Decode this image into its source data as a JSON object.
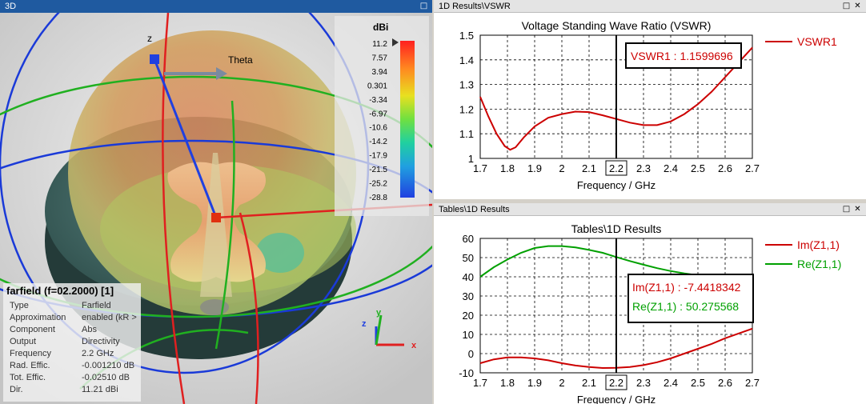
{
  "panel3d": {
    "title": "3D",
    "unit": "dBi",
    "scale_ticks": [
      "11.2",
      "7.57",
      "3.94",
      "0.301",
      "-3.34",
      "-6.97",
      "-10.6",
      "-14.2",
      "-17.9",
      "-21.5",
      "-25.2",
      "-28.8"
    ],
    "axis_labels": {
      "z_top": "z",
      "theta": "Theta",
      "x": "x",
      "y": "y",
      "z": "z"
    },
    "info": {
      "header": "farfield (f=02.2000) [1]",
      "rows": [
        {
          "label": "Type",
          "value": "Farfield"
        },
        {
          "label": "Approximation",
          "value": "enabled (kR >"
        },
        {
          "label": "Component",
          "value": "Abs"
        },
        {
          "label": "Output",
          "value": "Directivity"
        },
        {
          "label": "Frequency",
          "value": "2.2 GHz"
        },
        {
          "label": "Rad. Effic.",
          "value": "-0.001210 dB"
        },
        {
          "label": "Tot. Effic.",
          "value": "-0.02510 dB"
        },
        {
          "label": "Dir.",
          "value": "11.21 dBi"
        }
      ]
    }
  },
  "vswr_panel": {
    "title": "1D Results\\VSWR",
    "marker_label": "VSWR1 : 1.1599696"
  },
  "tables_panel": {
    "title": "Tables\\1D Results",
    "marker_im": "Im(Z1,1) : -7.4418342",
    "marker_re": "Re(Z1,1) : 50.275568"
  },
  "chart_data": [
    {
      "type": "line",
      "title": "Voltage Standing Wave Ratio (VSWR)",
      "xlabel": "Frequency / GHz",
      "ylabel": "",
      "xlim": [
        1.7,
        2.7
      ],
      "ylim": [
        1.0,
        1.5
      ],
      "xticks": [
        "1.7",
        "1.8",
        "1.9",
        "2",
        "2.1",
        "2.2",
        "2.3",
        "2.4",
        "2.5",
        "2.6",
        "2.7"
      ],
      "yticks": [
        "1",
        "1.1",
        "1.2",
        "1.3",
        "1.4",
        "1.5"
      ],
      "marker_x": 2.2,
      "legend_position": "right",
      "series": [
        {
          "name": "VSWR1",
          "color": "#cc0000",
          "x": [
            1.7,
            1.73,
            1.76,
            1.79,
            1.81,
            1.83,
            1.86,
            1.9,
            1.95,
            2.0,
            2.05,
            2.1,
            2.15,
            2.2,
            2.25,
            2.3,
            2.35,
            2.4,
            2.45,
            2.5,
            2.55,
            2.6,
            2.65,
            2.7
          ],
          "y": [
            1.25,
            1.17,
            1.1,
            1.05,
            1.035,
            1.045,
            1.085,
            1.13,
            1.165,
            1.18,
            1.19,
            1.188,
            1.175,
            1.16,
            1.145,
            1.135,
            1.135,
            1.15,
            1.18,
            1.22,
            1.27,
            1.33,
            1.39,
            1.45
          ]
        }
      ]
    },
    {
      "type": "line",
      "title": "Tables\\1D Results",
      "xlabel": "Frequency / GHz",
      "ylabel": "",
      "xlim": [
        1.7,
        2.7
      ],
      "ylim": [
        -10,
        60
      ],
      "xticks": [
        "1.7",
        "1.8",
        "1.9",
        "2",
        "2.1",
        "2.2",
        "2.3",
        "2.4",
        "2.5",
        "2.6",
        "2.7"
      ],
      "yticks": [
        "-10",
        "0",
        "10",
        "20",
        "30",
        "40",
        "50",
        "60"
      ],
      "marker_x": 2.2,
      "legend_position": "right",
      "series": [
        {
          "name": "Im(Z1,1)",
          "color": "#cc0000",
          "x": [
            1.7,
            1.75,
            1.8,
            1.85,
            1.9,
            1.95,
            2.0,
            2.05,
            2.1,
            2.15,
            2.2,
            2.25,
            2.3,
            2.35,
            2.4,
            2.45,
            2.5,
            2.55,
            2.6,
            2.65,
            2.7
          ],
          "y": [
            -5,
            -3,
            -2,
            -2,
            -2.5,
            -3.5,
            -5,
            -6.2,
            -7,
            -7.5,
            -7.4,
            -7,
            -6,
            -4.5,
            -2.5,
            0,
            2.5,
            5,
            8,
            10.5,
            13
          ]
        },
        {
          "name": "Re(Z1,1)",
          "color": "#00a000",
          "x": [
            1.7,
            1.75,
            1.8,
            1.85,
            1.9,
            1.95,
            2.0,
            2.05,
            2.1,
            2.15,
            2.2,
            2.25,
            2.3,
            2.35,
            2.4,
            2.45,
            2.5,
            2.55,
            2.6,
            2.65,
            2.7
          ],
          "y": [
            40,
            45,
            49,
            52.5,
            55,
            56,
            56,
            55.3,
            54,
            52.5,
            50.3,
            48.2,
            46.3,
            44.5,
            43,
            41.8,
            40.8,
            39.9,
            39.3,
            38.8,
            38.5
          ]
        }
      ]
    }
  ]
}
